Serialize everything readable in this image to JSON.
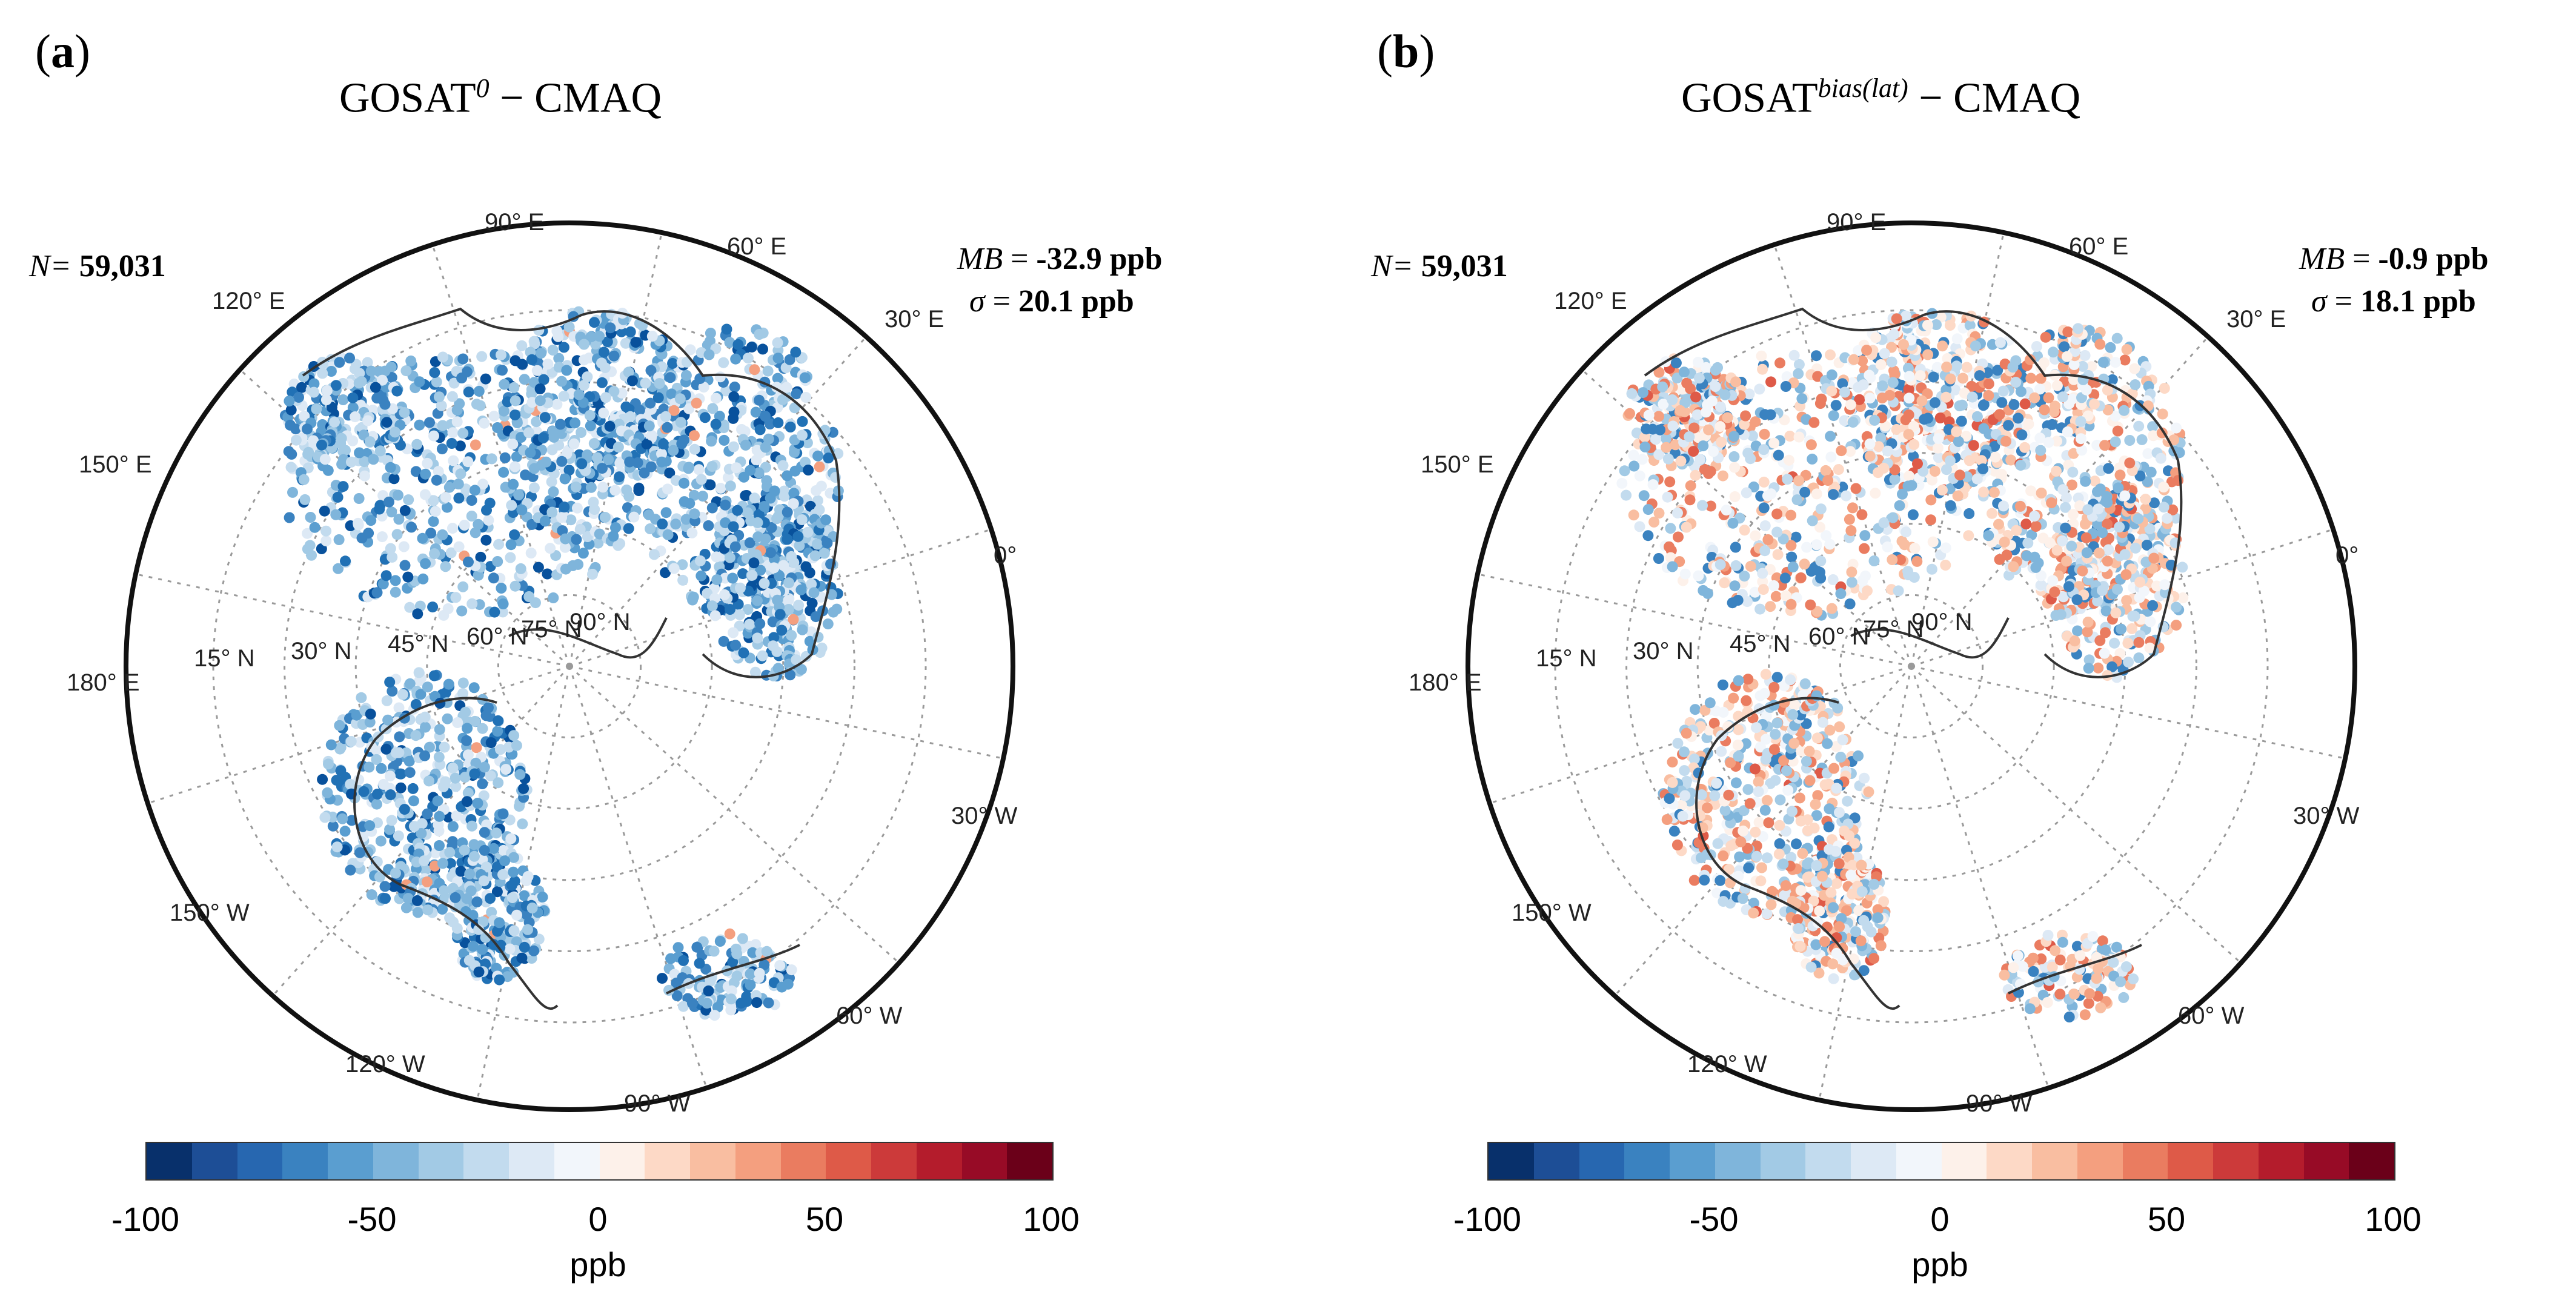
{
  "panels": [
    {
      "letter": "a",
      "title_main": "GOSAT",
      "title_sup": "0",
      "title_rest": " − CMAQ",
      "n_label": "N=",
      "n_value": "59,031",
      "mb_label": "MB",
      "mb_value": "-32.9 ppb",
      "sigma_label": "σ",
      "sigma_value": "20.1 ppb",
      "stats": {
        "mean_bias_ppb": -32.9,
        "sigma_ppb": 20.1,
        "n": 59031
      },
      "tint": "blue"
    },
    {
      "letter": "b",
      "title_main": "GOSAT",
      "title_sup": "bias(lat)",
      "title_rest": " − CMAQ",
      "n_label": "N=",
      "n_value": "59,031",
      "mb_label": "MB",
      "mb_value": "-0.9 ppb",
      "sigma_label": "σ",
      "sigma_value": "18.1 ppb",
      "stats": {
        "mean_bias_ppb": -0.9,
        "sigma_ppb": 18.1,
        "n": 59031
      },
      "tint": "mixed"
    }
  ],
  "map": {
    "longitude_labels": [
      "90° E",
      "60° E",
      "30° E",
      "0°",
      "30° W",
      "60° W",
      "90° W",
      "120° W",
      "150° W",
      "180° E",
      "150° E",
      "120° E"
    ],
    "latitude_labels": [
      "15° N",
      "30° N",
      "45° N",
      "60° N",
      "75° N",
      "90° N"
    ]
  },
  "colorbar": {
    "colors": [
      "#08306b",
      "#1d4e96",
      "#2767b0",
      "#3a82c0",
      "#5a9ed0",
      "#7fb5db",
      "#a2cae5",
      "#c2dbee",
      "#dde9f5",
      "#f2f6fb",
      "#fdf1ea",
      "#fdd9c6",
      "#f9bea1",
      "#f49f7f",
      "#ea7c60",
      "#de5a48",
      "#cc3a3a",
      "#b41c2c",
      "#970b26",
      "#6b0019"
    ],
    "ticks": [
      "-100",
      "-50",
      "0",
      "50",
      "100"
    ],
    "tick_values": [
      -100,
      -50,
      0,
      50,
      100
    ],
    "unit": "ppb"
  }
}
